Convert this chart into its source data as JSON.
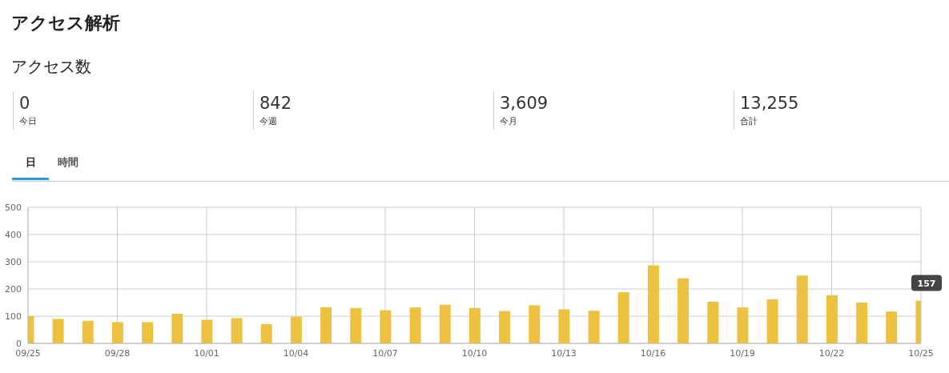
{
  "chart_data": {
    "type": "bar",
    "title": "アクセス解析",
    "subtitle": "アクセス数",
    "annotations": [
      "0",
      "今日",
      "842",
      "今週",
      "3,609",
      "今月",
      "13,255",
      "合計",
      "日",
      "時間",
      {
        "text": "157",
        "x": "10/25",
        "y": 157
      }
    ],
    "categories": [
      "09/25",
      null,
      null,
      "09/28",
      null,
      null,
      "10/01",
      null,
      null,
      "10/04",
      null,
      null,
      "10/07",
      null,
      null,
      "10/10",
      null,
      null,
      "10/13",
      null,
      null,
      "10/16",
      null,
      null,
      "10/19",
      null,
      null,
      "10/22",
      null,
      null,
      "10/25"
    ],
    "values": [
      100,
      90,
      83,
      78,
      78,
      109,
      87,
      93,
      71,
      98,
      133,
      130,
      122,
      132,
      142,
      130,
      119,
      140,
      125,
      120,
      188,
      287,
      239,
      153,
      132,
      162,
      249,
      177,
      150,
      117,
      157
    ],
    "color": "#ecc240",
    "ylim": [
      0,
      500
    ],
    "yticks": [
      0,
      100,
      200,
      300,
      400,
      500
    ],
    "grid": true
  }
}
